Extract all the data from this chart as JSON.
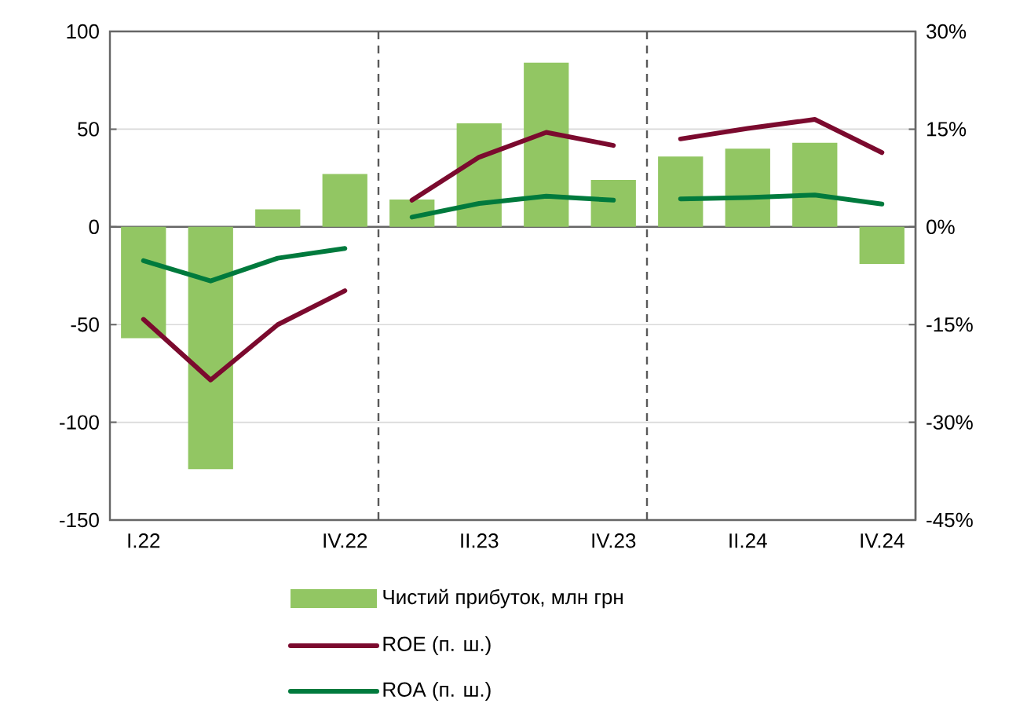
{
  "chart_data": {
    "type": "bar",
    "categories": [
      "I.22",
      null,
      null,
      "IV.22",
      null,
      "II.23",
      null,
      "IV.23",
      null,
      "II.24",
      null,
      "IV.24"
    ],
    "series": [
      {
        "name": "Чистий прибуток, млн грн",
        "color": "#92c663",
        "values": [
          -57,
          -124,
          9,
          27,
          14,
          53,
          84,
          24,
          36,
          40,
          43,
          -19
        ]
      },
      {
        "name": "ROE (п. ш.)",
        "type": "line",
        "axis": "y2",
        "color": "#7b0a2e",
        "values": [
          -14.2,
          -23.5,
          -15.0,
          -9.8,
          null,
          null,
          null,
          null,
          null,
          null,
          null,
          null
        ]
      },
      {
        "type": "line",
        "axis": "y2",
        "color": "#7b0a2e",
        "values": [
          null,
          null,
          null,
          null,
          4.1,
          10.7,
          14.5,
          12.5,
          null,
          null,
          null,
          null
        ]
      },
      {
        "type": "line",
        "axis": "y2",
        "color": "#7b0a2e",
        "values": [
          null,
          null,
          null,
          null,
          null,
          null,
          null,
          null,
          13.5,
          15.1,
          16.5,
          11.4
        ]
      },
      {
        "name": "ROA (п. ш.)",
        "type": "line",
        "axis": "y2",
        "color": "#007a3d",
        "values": [
          -5.2,
          -8.3,
          -4.8,
          -3.3,
          null,
          null,
          null,
          null,
          null,
          null,
          null,
          null
        ]
      },
      {
        "type": "line",
        "axis": "y2",
        "color": "#007a3d",
        "values": [
          null,
          null,
          null,
          null,
          1.5,
          3.6,
          4.7,
          4.1,
          null,
          null,
          null,
          null
        ]
      },
      {
        "type": "line",
        "axis": "y2",
        "color": "#007a3d",
        "values": [
          null,
          null,
          null,
          null,
          null,
          null,
          null,
          null,
          4.3,
          4.5,
          4.9,
          3.5
        ]
      }
    ],
    "ylim": [
      -150,
      100
    ],
    "yticks": [
      -150,
      -100,
      -50,
      0,
      50,
      100
    ],
    "y2lim": [
      -45,
      30
    ],
    "y2ticks": [
      {
        "value": -45,
        "label": "-45%"
      },
      {
        "value": -30,
        "label": "-30%"
      },
      {
        "value": -15,
        "label": "-15%"
      },
      {
        "value": 0,
        "label": "0%"
      },
      {
        "value": 15,
        "label": "15%"
      },
      {
        "value": 30,
        "label": "30%"
      }
    ],
    "grid": "y",
    "legend": "bottom"
  }
}
